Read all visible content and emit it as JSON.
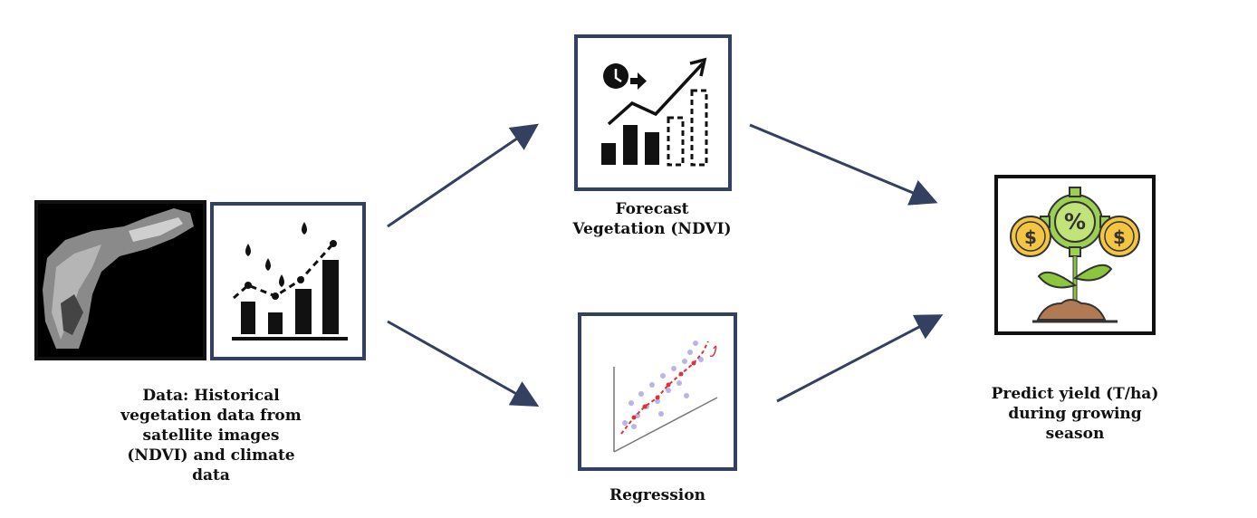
{
  "labels": {
    "data": "Data: Historical\nvegetation data  from\nsatellite  images\n(NDVI)  and climate\ndata",
    "forecast": "Forecast\nVegetation (NDVI)",
    "regression": "Regression",
    "predict": "Predict yield (T/ha)\n during growing\nseason"
  },
  "colors": {
    "box_border": "#34405f",
    "arrow": "#34405f",
    "regression_points": "#b9b4e8",
    "regression_fit": "#e0303a",
    "coin": "#f4c542",
    "gear": "#9ccf52",
    "leaf": "#8cc63f",
    "soil": "#b07a52"
  },
  "icons": {
    "satellite": "satellite-image-icon",
    "climate": "climate-chart-icon",
    "forecast": "forecast-chart-icon",
    "regression": "regression-plot-icon",
    "yield": "yield-money-plant-icon"
  }
}
